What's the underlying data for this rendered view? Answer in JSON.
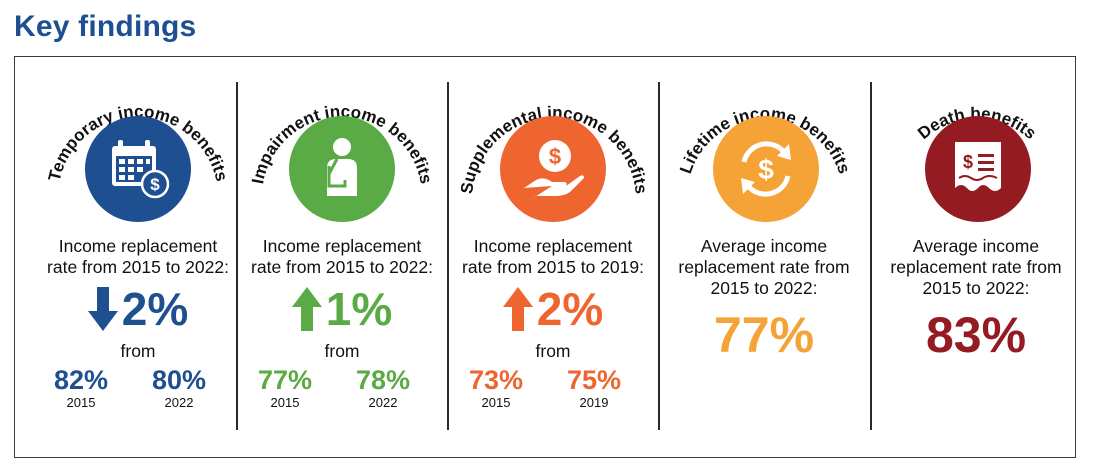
{
  "header": {
    "title": "Key findings"
  },
  "colors": {
    "blue": "#1d4f91",
    "green": "#5aaa45",
    "orange": "#ef6530",
    "amber": "#f5a236",
    "maroon": "#941b22"
  },
  "panels": [
    {
      "title": "Temporary income benefits",
      "icon": "calendar-dollar-icon",
      "caption_line1": "Income replacement",
      "caption_line2": "rate from 2015 to 2022:",
      "direction": "down",
      "change": "2%",
      "from_label": "from",
      "start_value": "82%",
      "start_year": "2015",
      "end_value": "80%",
      "end_year": "2022"
    },
    {
      "title": "Impairment income benefits",
      "icon": "injured-person-icon",
      "caption_line1": "Income replacement",
      "caption_line2": "rate from 2015 to 2022:",
      "direction": "up",
      "change": "1%",
      "from_label": "from",
      "start_value": "77%",
      "start_year": "2015",
      "end_value": "78%",
      "end_year": "2022"
    },
    {
      "title": "Supplemental income benefits",
      "icon": "hand-coin-icon",
      "caption_line1": "Income replacement",
      "caption_line2": "rate from 2015 to 2019:",
      "direction": "up",
      "change": "2%",
      "from_label": "from",
      "start_value": "73%",
      "start_year": "2015",
      "end_value": "75%",
      "end_year": "2019"
    },
    {
      "title": "Lifetime income benefits",
      "icon": "recurring-dollar-icon",
      "caption_line1": "Average income",
      "caption_line2": "replacement rate from",
      "caption_line3": "2015 to 2022:",
      "value": "77%"
    },
    {
      "title": "Death benefits",
      "icon": "certificate-dollar-icon",
      "caption_line1": "Average income",
      "caption_line2": "replacement rate from",
      "caption_line3": "2015 to 2022:",
      "value": "83%"
    }
  ]
}
